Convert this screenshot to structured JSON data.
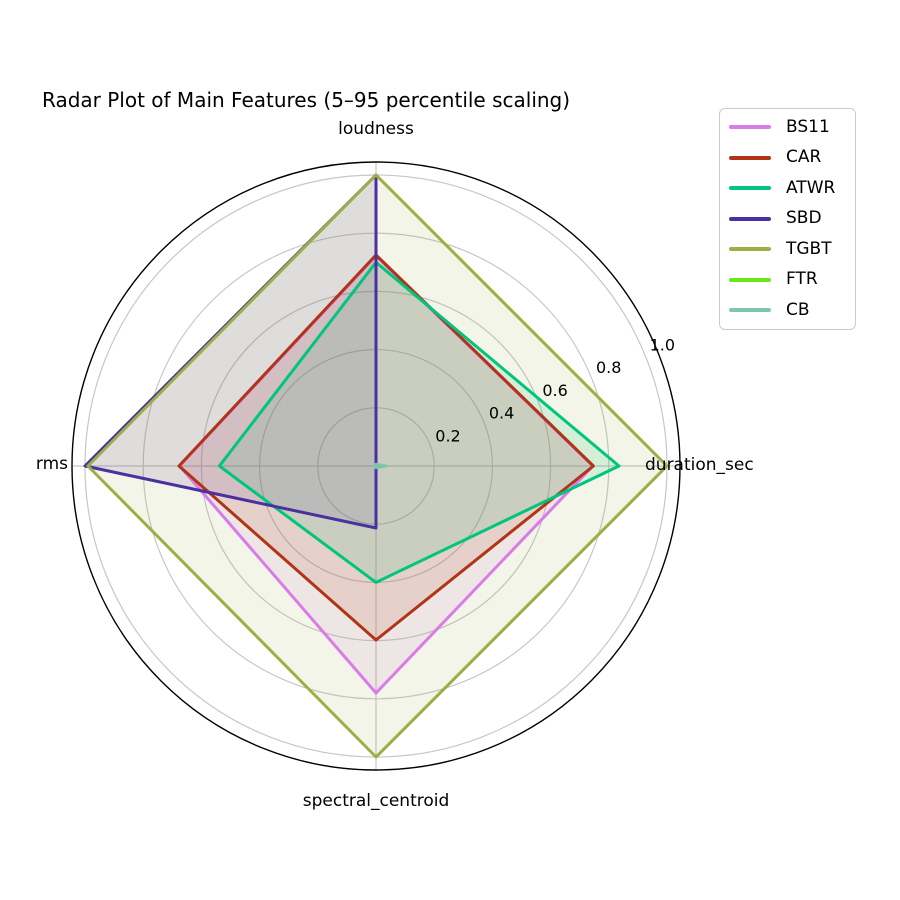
{
  "title": "Radar Plot of Main Features (5–95 percentile scaling)",
  "axis_labels": {
    "top": "loudness",
    "right": "duration_sec",
    "bottom": "spectral_centroid",
    "left": "rms"
  },
  "tick_labels": [
    "0.2",
    "0.4",
    "0.6",
    "0.8",
    "1.0"
  ],
  "chart_data": {
    "type": "radar",
    "categories": [
      "duration_sec",
      "loudness",
      "rms",
      "spectral_centroid"
    ],
    "angles_deg": [
      0,
      90,
      180,
      270
    ],
    "r_ticks": [
      0.2,
      0.4,
      0.6,
      0.8,
      1.0
    ],
    "r_axis_max": 1.045,
    "grid": true,
    "legend_position": "upper right",
    "title": "Radar Plot of Main Features (5–95 percentile scaling)",
    "series": [
      {
        "name": "BS11",
        "color": "#D97BE8",
        "values": [
          0.745,
          0.722,
          0.675,
          0.78
        ]
      },
      {
        "name": "CAR",
        "color": "#B13417",
        "values": [
          0.747,
          0.725,
          0.677,
          0.598
        ]
      },
      {
        "name": "ATWR",
        "color": "#00C57E",
        "values": [
          0.835,
          0.7,
          0.538,
          0.4
        ]
      },
      {
        "name": "SBD",
        "color": "#4B30A0",
        "values": [
          0.0,
          1.0,
          1.0,
          0.213
        ]
      },
      {
        "name": "TGBT",
        "color": "#9CAF45",
        "values": [
          1.0,
          1.0,
          0.99,
          1.0
        ]
      },
      {
        "name": "FTR",
        "color": "#69E91A",
        "values": [
          0.002,
          0.002,
          0.002,
          0.002
        ]
      },
      {
        "name": "CB",
        "color": "#7CC7AC",
        "values": [
          0.035,
          0.006,
          0.006,
          0.006
        ]
      }
    ],
    "style": {
      "grid_color": "#c7c7c7",
      "spine_color": "#000000",
      "line_width": 3,
      "fill_opacity": 0.13
    }
  }
}
